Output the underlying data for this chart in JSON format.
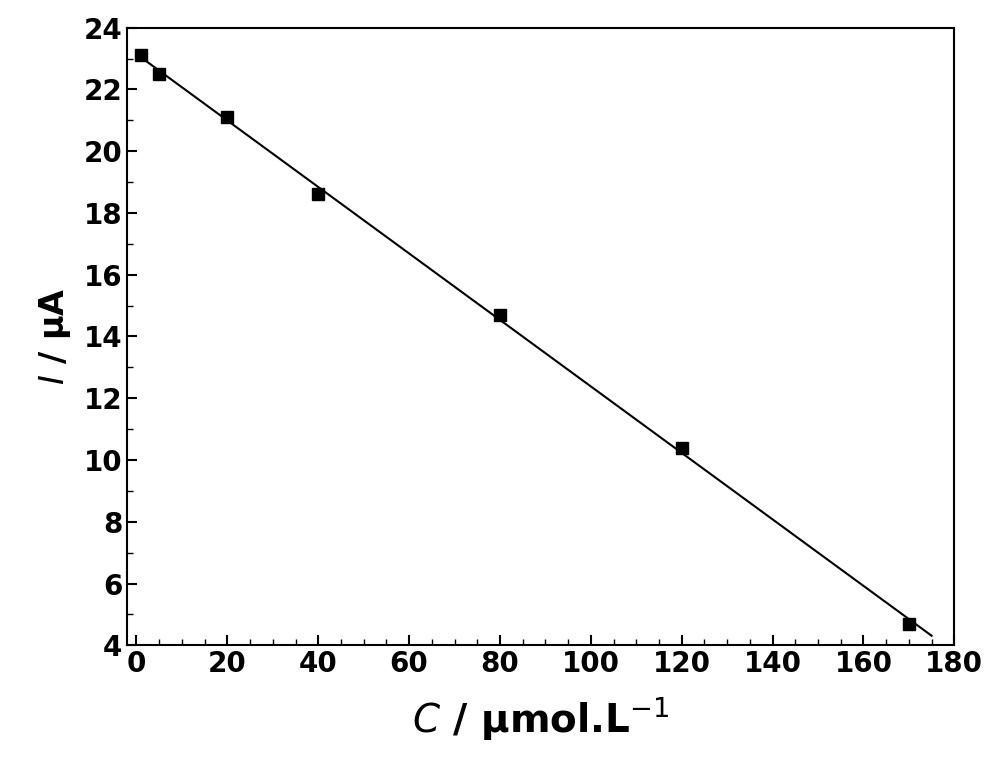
{
  "x_data": [
    1,
    5,
    20,
    40,
    80,
    120,
    170
  ],
  "y_data": [
    23.1,
    22.5,
    21.1,
    18.6,
    14.7,
    10.4,
    4.7
  ],
  "line_color": "#000000",
  "marker_color": "#000000",
  "marker_style": "s",
  "marker_size": 9,
  "xlabel": "C / μmol.L⁻¹",
  "ylabel": "I / μA",
  "xlim": [
    -2,
    180
  ],
  "ylim": [
    4,
    24
  ],
  "xticks": [
    0,
    20,
    40,
    60,
    80,
    100,
    120,
    140,
    160,
    180
  ],
  "yticks": [
    4,
    6,
    8,
    10,
    12,
    14,
    16,
    18,
    20,
    22,
    24
  ],
  "xlabel_fontsize": 28,
  "ylabel_fontsize": 24,
  "tick_fontsize": 20,
  "background_color": "#ffffff",
  "line_width": 1.5
}
